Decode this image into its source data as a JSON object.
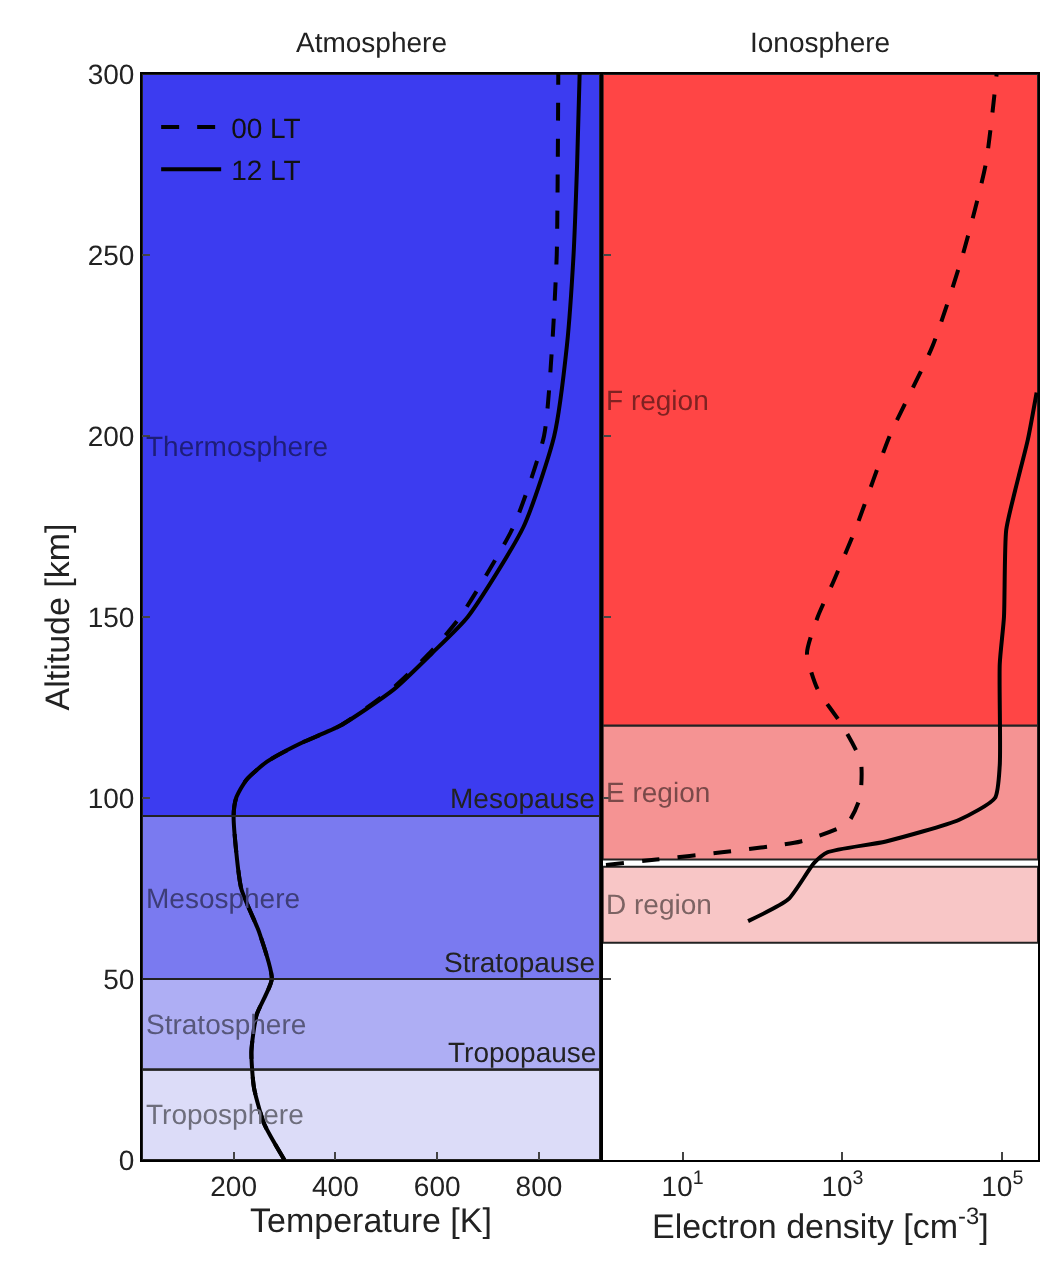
{
  "chart_data": [
    {
      "type": "line",
      "title": "Atmosphere",
      "xlabel": "Temperature [K]",
      "ylabel": "Altitude [km]",
      "xlim": [
        20,
        920
      ],
      "xticks": [
        200,
        400,
        600,
        800
      ],
      "ylim": [
        0,
        300
      ],
      "yticks": [
        0,
        50,
        100,
        150,
        200,
        250,
        300
      ],
      "legend": "top left",
      "grid": false,
      "series": [
        {
          "name": "00 LT",
          "color": "#000000",
          "line_style": "dashed",
          "x": [
            300,
            260,
            240,
            235,
            245,
            275,
            250,
            215,
            200,
            205,
            225,
            265,
            330,
            410,
            510,
            585,
            645,
            750,
            810,
            826,
            835,
            837,
            838
          ],
          "values": [
            0,
            10,
            20,
            30,
            40,
            50,
            63,
            75,
            95,
            100,
            105,
            110,
            115,
            120,
            130,
            140,
            150,
            175,
            200,
            225,
            250,
            275,
            300
          ]
        },
        {
          "name": "12 LT",
          "color": "#000000",
          "line_style": "solid",
          "x": [
            300,
            260,
            240,
            235,
            245,
            275,
            250,
            215,
            200,
            205,
            225,
            265,
            330,
            410,
            515,
            590,
            660,
            770,
            830,
            855,
            868,
            875,
            880
          ],
          "values": [
            0,
            10,
            20,
            30,
            40,
            50,
            63,
            75,
            95,
            100,
            105,
            110,
            115,
            120,
            130,
            140,
            150,
            175,
            200,
            225,
            250,
            275,
            300
          ]
        }
      ],
      "bands": [
        {
          "axis": "y",
          "from": 0,
          "to": 25,
          "label": "Troposphere",
          "color": "#dcdcf8"
        },
        {
          "axis": "y",
          "from": 25,
          "to": 50,
          "label": "Stratosphere",
          "color": "#aeaef4"
        },
        {
          "axis": "y",
          "from": 50,
          "to": 95,
          "label": "Mesosphere",
          "color": "#7a7af0"
        },
        {
          "axis": "y",
          "from": 95,
          "to": 300,
          "label": "Thermosphere",
          "color": "#3c3cf0"
        }
      ],
      "ref_lines": [
        {
          "axis": "y",
          "value": 95,
          "label": "Mesopause"
        },
        {
          "axis": "y",
          "value": 50,
          "label": "Stratopause"
        },
        {
          "axis": "y",
          "value": 25,
          "label": "Tropopause"
        }
      ]
    },
    {
      "type": "line",
      "title": "Ionosphere",
      "xlabel": "Electron density [cm$^{-3}$]",
      "log": "x",
      "xlim": [
        1,
        280000
      ],
      "xticks": [
        {
          "value": 10,
          "label": "10$^{1}$"
        },
        {
          "value": 1000,
          "label": "10$^{3}$"
        },
        {
          "value": 100000,
          "label": "10$^{5}$"
        }
      ],
      "ylim": [
        0,
        300
      ],
      "yticks": [
        0,
        50,
        100,
        150,
        200,
        250,
        300
      ],
      "tick_labels": "x",
      "grid": false,
      "series": [
        {
          "color": "#000000",
          "line_style": "dashed",
          "x": [
            1.1,
            4.7,
            31,
            300,
            1150,
            1650,
            1700,
            1000,
            490,
            360,
            490,
            780,
            1500,
            3900,
            13500,
            32000,
            62000,
            85000
          ],
          "values": [
            81.5,
            83,
            85,
            88,
            93,
            100,
            110,
            120,
            130,
            140,
            150,
            160,
            175,
            200,
            225,
            250,
            275,
            300
          ]
        },
        {
          "color": "#000000",
          "line_style": "solid",
          "x": [
            66,
            210,
            440,
            650,
            3500,
            29000,
            81000,
            93000,
            93000,
            105000,
            112000,
            145000,
            209000,
            269000
          ],
          "values": [
            66,
            72,
            82,
            85,
            88,
            94,
            100,
            109,
            137,
            150,
            174,
            185,
            199,
            212
          ]
        }
      ],
      "bands": [
        {
          "axis": "y",
          "from": 60,
          "to": 81,
          "label": "D region",
          "color": "#f8c6c6"
        },
        {
          "axis": "y",
          "from": 83,
          "to": 120,
          "label": "E region",
          "color": "#f59393"
        },
        {
          "axis": "y",
          "from": 120,
          "to": 300,
          "label": "F region",
          "color": "#ff4545"
        }
      ]
    }
  ]
}
